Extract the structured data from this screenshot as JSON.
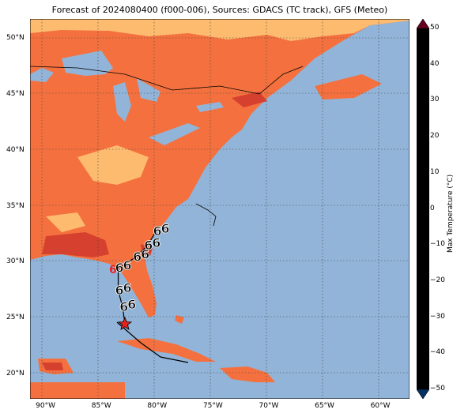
{
  "title": "Forecast of 2024080400 (f000-006), Sources: GDACS (TC track), GFS (Meteo)",
  "x_ticks": [
    "90°W",
    "85°W",
    "80°W",
    "75°W",
    "70°W",
    "65°W",
    "60°W"
  ],
  "y_ticks": [
    "50°N",
    "45°N",
    "40°N",
    "35°N",
    "30°N",
    "25°N",
    "20°N"
  ],
  "colorbar": {
    "title": "Max Temperature (°C)",
    "ticks": [
      "50",
      "40",
      "30",
      "20",
      "10",
      "0",
      "−10",
      "−20",
      "−30",
      "−40",
      "−50"
    ],
    "colors": [
      "#67001f",
      "#b2182b",
      "#d6604d",
      "#f4a582",
      "#fddbc7",
      "#f7f7f7",
      "#d1e5f0",
      "#92c5de",
      "#4393c3",
      "#2166ac",
      "#053061"
    ]
  },
  "colors": {
    "ocean": "#92b4d8",
    "land_warm": "#f4713f",
    "land_hot": "#d6402e",
    "land_mild": "#fdbb6f",
    "track": "#000000",
    "marker_red": "#e8231e"
  },
  "storm_symbol": "6",
  "map_data": {
    "storm_track": [
      {
        "lon": -83.0,
        "lat": 24.5
      },
      {
        "lon": -83.2,
        "lat": 26.0
      },
      {
        "lon": -83.6,
        "lat": 27.5
      },
      {
        "lon": -83.6,
        "lat": 29.5
      },
      {
        "lon": -82.0,
        "lat": 30.5
      },
      {
        "lon": -81.0,
        "lat": 31.5
      },
      {
        "lon": -80.2,
        "lat": 32.8
      }
    ],
    "current_position": {
      "lon": -83.0,
      "lat": 24.5
    }
  }
}
